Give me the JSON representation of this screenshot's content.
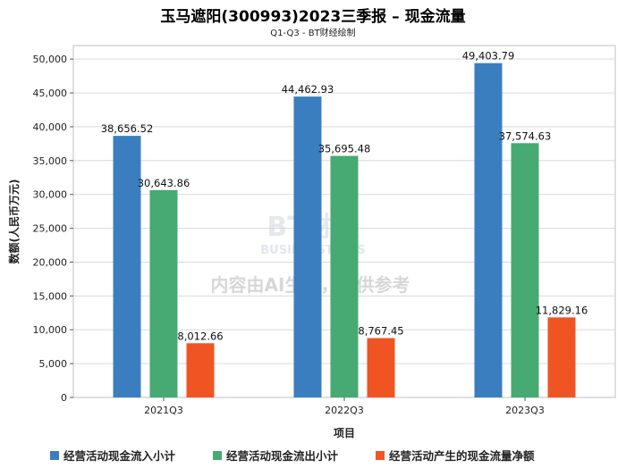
{
  "chart_data": {
    "type": "bar",
    "title": "玉马遮阳(300993)2023三季报 – 现金流量",
    "subtitle": "Q1-Q3 - BT财经绘制",
    "xlabel": "项目",
    "ylabel": "数额(人民币万元)",
    "categories": [
      "2021Q3",
      "2022Q3",
      "2023Q3"
    ],
    "ylim": [
      0,
      52000
    ],
    "yticks": [
      0,
      5000,
      10000,
      15000,
      20000,
      25000,
      30000,
      35000,
      40000,
      45000,
      50000
    ],
    "grid": true,
    "legend_position": "bottom",
    "series": [
      {
        "name": "经营活动现金流入小计",
        "color": "#3a7ebf",
        "values": [
          38656.52,
          44462.93,
          49403.79
        ],
        "labels": [
          "38,656.52",
          "44,462.93",
          "49,403.79"
        ]
      },
      {
        "name": "经营活动现金流出小计",
        "color": "#46aa72",
        "values": [
          30643.86,
          35695.48,
          37574.63
        ],
        "labels": [
          "30,643.86",
          "35,695.48",
          "37,574.63"
        ]
      },
      {
        "name": "经营活动产生的现金流量净额",
        "color": "#f05423",
        "values": [
          8012.66,
          8767.45,
          11829.16
        ],
        "labels": [
          "8,012.66",
          "8,767.45",
          "11,829.16"
        ]
      }
    ]
  },
  "watermark": {
    "brand": "BT财经",
    "brand_sub": "BUSINESSTIMES",
    "notice": "内容由AI生成，仅供参考"
  }
}
